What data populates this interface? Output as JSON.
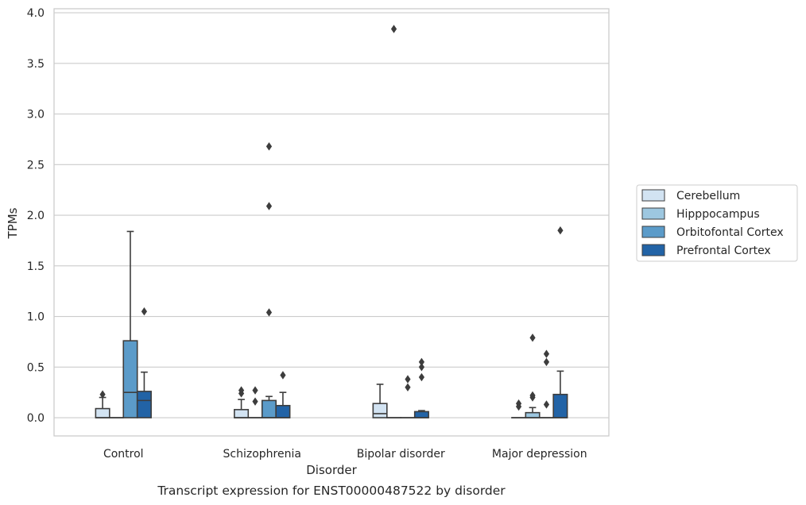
{
  "chart_data": {
    "type": "box",
    "caption": "Transcript expression for ENST00000487522 by disorder",
    "xlabel": "Disorder",
    "ylabel": "TPMs",
    "ylim": [
      -0.18,
      4.04
    ],
    "yticks": [
      "0.0",
      "0.5",
      "1.0",
      "1.5",
      "2.0",
      "2.5",
      "3.0",
      "3.5",
      "4.0"
    ],
    "grid": true,
    "legend_position": "right",
    "categories": [
      "Control",
      "Schizophrenia",
      "Bipolar disorder",
      "Major depression"
    ],
    "series": [
      {
        "name": "Cerebellum",
        "color": "#d2e3f2",
        "boxes": [
          {
            "q1": 0.0,
            "median": 0.0,
            "q3": 0.09,
            "whislo": 0.0,
            "whishi": 0.2,
            "fliers": [
              0.23
            ]
          },
          {
            "q1": 0.0,
            "median": 0.0,
            "q3": 0.08,
            "whislo": 0.0,
            "whishi": 0.18,
            "fliers": [
              0.24,
              0.27
            ]
          },
          {
            "q1": 0.0,
            "median": 0.04,
            "q3": 0.14,
            "whislo": 0.0,
            "whishi": 0.33,
            "fliers": []
          },
          {
            "q1": 0.0,
            "median": 0.0,
            "q3": 0.0,
            "whislo": 0.0,
            "whishi": 0.0,
            "fliers": [
              0.11,
              0.14
            ]
          }
        ]
      },
      {
        "name": "Hipppocampus",
        "color": "#9dc7e0",
        "boxes": [
          {
            "q1": 0.0,
            "median": 0.0,
            "q3": 0.0,
            "whislo": 0.0,
            "whishi": 0.0,
            "fliers": []
          },
          {
            "q1": 0.0,
            "median": 0.0,
            "q3": 0.0,
            "whislo": 0.0,
            "whishi": 0.0,
            "fliers": [
              0.16,
              0.27
            ]
          },
          {
            "q1": 0.0,
            "median": 0.0,
            "q3": 0.0,
            "whislo": 0.0,
            "whishi": 0.0,
            "fliers": [
              3.84
            ]
          },
          {
            "q1": 0.0,
            "median": 0.0,
            "q3": 0.05,
            "whislo": 0.0,
            "whishi": 0.1,
            "fliers": [
              0.2,
              0.22,
              0.79
            ]
          }
        ]
      },
      {
        "name": "Orbitofontal Cortex",
        "color": "#5b9bc9",
        "boxes": [
          {
            "q1": 0.0,
            "median": 0.25,
            "q3": 0.76,
            "whislo": 0.0,
            "whishi": 1.84,
            "fliers": []
          },
          {
            "q1": 0.0,
            "median": 0.0,
            "q3": 0.17,
            "whislo": 0.0,
            "whishi": 0.21,
            "fliers": [
              1.04,
              2.09,
              2.68
            ]
          },
          {
            "q1": 0.0,
            "median": 0.0,
            "q3": 0.0,
            "whislo": 0.0,
            "whishi": 0.0,
            "fliers": [
              0.3,
              0.38
            ]
          },
          {
            "q1": 0.0,
            "median": 0.0,
            "q3": 0.0,
            "whislo": 0.0,
            "whishi": 0.0,
            "fliers": [
              0.13,
              0.55,
              0.63
            ]
          }
        ]
      },
      {
        "name": "Prefrontal Cortex",
        "color": "#2263a6",
        "boxes": [
          {
            "q1": 0.0,
            "median": 0.17,
            "q3": 0.26,
            "whislo": 0.0,
            "whishi": 0.45,
            "fliers": [
              1.05
            ]
          },
          {
            "q1": 0.0,
            "median": 0.0,
            "q3": 0.12,
            "whislo": 0.0,
            "whishi": 0.25,
            "fliers": [
              0.42
            ]
          },
          {
            "q1": 0.0,
            "median": 0.0,
            "q3": 0.06,
            "whislo": 0.0,
            "whishi": 0.07,
            "fliers": [
              0.4,
              0.5,
              0.55
            ]
          },
          {
            "q1": 0.0,
            "median": 0.0,
            "q3": 0.23,
            "whislo": 0.0,
            "whishi": 0.46,
            "fliers": [
              1.85
            ]
          }
        ]
      }
    ]
  }
}
